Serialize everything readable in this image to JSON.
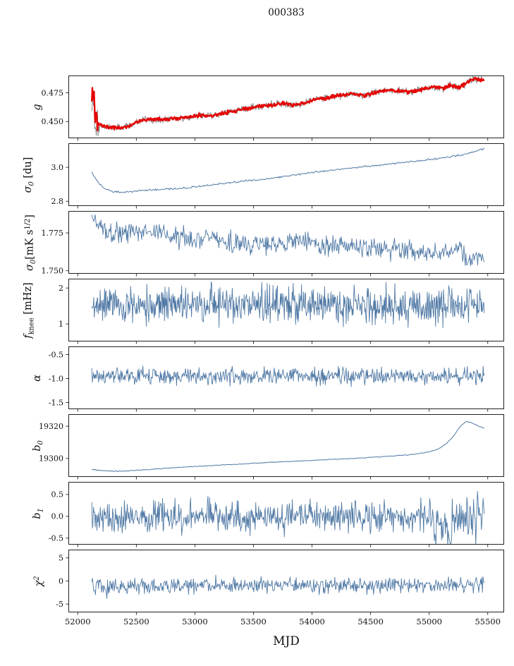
{
  "figure": {
    "title": "000383",
    "xlabel": "MJD"
  },
  "chart_data": {
    "type": "line",
    "description": "Stack of 8 time-series panels sharing MJD x-axis; noisy instrument gain/noise parameters vs time. Trends given as control points [MJD, value]; 'noise' is the 1-sigma scatter around the trend.",
    "x_axis": {
      "label": "MJD",
      "xlim": [
        51920,
        55640
      ],
      "data_range": [
        52120,
        55470
      ],
      "ticks": [
        52000,
        52500,
        53000,
        53500,
        54000,
        54500,
        55000,
        55500
      ],
      "tick_labels": [
        "52000",
        "52500",
        "53000",
        "53500",
        "54000",
        "54500",
        "55000",
        "55500"
      ]
    },
    "panels": [
      {
        "name": "g",
        "ylabel_parts": [
          {
            "v": "g",
            "i": 1
          }
        ],
        "ylim": [
          0.4355,
          0.49
        ],
        "yticks": [
          {
            "v": 0.475,
            "label": "0.475"
          },
          {
            "v": 0.45,
            "label": "0.450"
          }
        ],
        "npts": 700,
        "trend": [
          [
            52120,
            0.46
          ],
          [
            52135,
            0.468
          ],
          [
            52150,
            0.452
          ],
          [
            52200,
            0.4465
          ],
          [
            52300,
            0.4445
          ],
          [
            52420,
            0.4455
          ],
          [
            52500,
            0.4495
          ],
          [
            52560,
            0.4515
          ],
          [
            52700,
            0.452
          ],
          [
            52900,
            0.4535
          ],
          [
            53050,
            0.4555
          ],
          [
            53150,
            0.455
          ],
          [
            53250,
            0.4575
          ],
          [
            53400,
            0.4605
          ],
          [
            53500,
            0.4625
          ],
          [
            53600,
            0.4638
          ],
          [
            53750,
            0.4655
          ],
          [
            53850,
            0.4645
          ],
          [
            53950,
            0.4665
          ],
          [
            54050,
            0.4695
          ],
          [
            54150,
            0.471
          ],
          [
            54250,
            0.473
          ],
          [
            54350,
            0.4742
          ],
          [
            54450,
            0.4725
          ],
          [
            54550,
            0.4755
          ],
          [
            54650,
            0.4772
          ],
          [
            54750,
            0.4765
          ],
          [
            54850,
            0.4758
          ],
          [
            54950,
            0.4785
          ],
          [
            55050,
            0.48
          ],
          [
            55120,
            0.4788
          ],
          [
            55180,
            0.4815
          ],
          [
            55250,
            0.4795
          ],
          [
            55300,
            0.482
          ],
          [
            55350,
            0.486
          ],
          [
            55400,
            0.4872
          ],
          [
            55470,
            0.4852
          ]
        ],
        "series": [
          {
            "name": "raw-gain",
            "color": "#8a8a8a",
            "width": 1.0,
            "seed": 101,
            "noise_pts": [
              [
                52120,
                0.008
              ],
              [
                52160,
                0.008
              ],
              [
                52190,
                0.0016
              ],
              [
                55470,
                0.0016
              ]
            ]
          },
          {
            "name": "smoothed-gain",
            "color": "#e60000",
            "width": 2.3,
            "seed": 102,
            "noise_pts": [
              [
                52120,
                0.0075
              ],
              [
                52160,
                0.0075
              ],
              [
                52190,
                0.0008
              ],
              [
                55470,
                0.0008
              ]
            ]
          }
        ]
      },
      {
        "name": "sigma0-du",
        "ylabel_parts": [
          {
            "v": "σ",
            "i": 1
          },
          {
            "v": "0",
            "s": "sub",
            "i": 1
          },
          {
            "v": " [du]"
          }
        ],
        "ylim": [
          2.772,
          3.142
        ],
        "yticks": [
          {
            "v": 3.0,
            "label": "3.0"
          },
          {
            "v": 2.8,
            "label": "2.8"
          }
        ],
        "npts": 450,
        "noise": 0.0025,
        "trend": [
          [
            52120,
            2.97
          ],
          [
            52170,
            2.915
          ],
          [
            52230,
            2.872
          ],
          [
            52300,
            2.856
          ],
          [
            52400,
            2.853
          ],
          [
            52550,
            2.862
          ],
          [
            52700,
            2.87
          ],
          [
            52850,
            2.875
          ],
          [
            53000,
            2.884
          ],
          [
            53200,
            2.9
          ],
          [
            53400,
            2.918
          ],
          [
            53600,
            2.93
          ],
          [
            53800,
            2.95
          ],
          [
            54000,
            2.97
          ],
          [
            54200,
            2.985
          ],
          [
            54400,
            3.0
          ],
          [
            54600,
            3.015
          ],
          [
            54800,
            3.03
          ],
          [
            55000,
            3.045
          ],
          [
            55150,
            3.06
          ],
          [
            55300,
            3.075
          ],
          [
            55400,
            3.095
          ],
          [
            55470,
            3.11
          ]
        ],
        "series": [
          {
            "name": "sigma0-du-line",
            "color": "#5079a5",
            "width": 1.0,
            "seed": 303
          }
        ]
      },
      {
        "name": "sigma0-mK",
        "ylabel_parts": [
          {
            "v": "σ",
            "i": 1
          },
          {
            "v": "0",
            "s": "sub",
            "i": 1
          },
          {
            "v": "[mK s"
          },
          {
            "v": "1/2",
            "s": "sup"
          },
          {
            "v": "]"
          }
        ],
        "ylim": [
          1.748,
          1.7895
        ],
        "yticks": [
          {
            "v": 1.775,
            "label": "1.775"
          },
          {
            "v": 1.75,
            "label": "1.750"
          }
        ],
        "npts": 600,
        "trend": [
          [
            52120,
            1.788
          ],
          [
            52160,
            1.78
          ],
          [
            52250,
            1.7755
          ],
          [
            52400,
            1.7735
          ],
          [
            52600,
            1.7765
          ],
          [
            52800,
            1.7725
          ],
          [
            53000,
            1.7705
          ],
          [
            53100,
            1.773
          ],
          [
            53300,
            1.7685
          ],
          [
            53500,
            1.7665
          ],
          [
            53700,
            1.768
          ],
          [
            53900,
            1.769
          ],
          [
            54100,
            1.7665
          ],
          [
            54300,
            1.7655
          ],
          [
            54500,
            1.7665
          ],
          [
            54700,
            1.7645
          ],
          [
            54900,
            1.7635
          ],
          [
            55050,
            1.76
          ],
          [
            55150,
            1.7625
          ],
          [
            55250,
            1.764
          ],
          [
            55330,
            1.756
          ],
          [
            55400,
            1.758
          ],
          [
            55470,
            1.759
          ]
        ],
        "series": [
          {
            "name": "sigma0-mK-line",
            "color": "#5079a5",
            "width": 0.9,
            "seed": 404,
            "noise_pts": [
              [
                52120,
                0.005
              ],
              [
                52200,
                0.0032
              ],
              [
                55470,
                0.0032
              ]
            ]
          }
        ]
      },
      {
        "name": "fknee",
        "ylabel_parts": [
          {
            "v": "f",
            "i": 1
          },
          {
            "v": "knee",
            "s": "sub"
          },
          {
            "v": " [mHz]"
          }
        ],
        "ylim": [
          0.51,
          2.26
        ],
        "yticks": [
          {
            "v": 2,
            "label": "2"
          },
          {
            "v": 1,
            "label": "1"
          }
        ],
        "npts": 800,
        "noise": 0.25,
        "trend": [
          [
            52120,
            1.52
          ],
          [
            55470,
            1.5
          ]
        ],
        "series": [
          {
            "name": "fknee-line",
            "color": "#5079a5",
            "width": 0.9,
            "seed": 505
          }
        ]
      },
      {
        "name": "alpha",
        "ylabel_parts": [
          {
            "v": "α",
            "i": 1
          }
        ],
        "ylim": [
          -1.64,
          -0.33
        ],
        "yticks": [
          {
            "v": -0.5,
            "label": "-0.5"
          },
          {
            "v": -1.0,
            "label": "-1.0"
          },
          {
            "v": -1.5,
            "label": "-1.5"
          }
        ],
        "npts": 700,
        "noise": 0.085,
        "trend": [
          [
            52120,
            -0.95
          ],
          [
            55470,
            -0.94
          ]
        ],
        "series": [
          {
            "name": "alpha-line",
            "color": "#5079a5",
            "width": 0.9,
            "seed": 606
          }
        ]
      },
      {
        "name": "b0",
        "ylabel_parts": [
          {
            "v": "b",
            "i": 1
          },
          {
            "v": "0",
            "s": "sub",
            "i": 1
          }
        ],
        "ylim": [
          19288.5,
          19327.5
        ],
        "yticks": [
          {
            "v": 19320,
            "label": "19320"
          },
          {
            "v": 19300,
            "label": "19300"
          }
        ],
        "npts": 450,
        "noise": 0.12,
        "trend": [
          [
            52120,
            19293.2
          ],
          [
            52200,
            19292.4
          ],
          [
            52350,
            19292.0
          ],
          [
            52500,
            19292.6
          ],
          [
            52700,
            19293.6
          ],
          [
            52900,
            19294.6
          ],
          [
            53100,
            19295.4
          ],
          [
            53300,
            19296.2
          ],
          [
            53500,
            19297.0
          ],
          [
            53700,
            19297.8
          ],
          [
            53900,
            19298.4
          ],
          [
            54100,
            19299.2
          ],
          [
            54300,
            19299.8
          ],
          [
            54500,
            19300.6
          ],
          [
            54700,
            19301.6
          ],
          [
            54850,
            19302.4
          ],
          [
            55000,
            19304.0
          ],
          [
            55080,
            19306.0
          ],
          [
            55150,
            19309.5
          ],
          [
            55200,
            19313.0
          ],
          [
            55260,
            19319.5
          ],
          [
            55310,
            19322.8
          ],
          [
            55360,
            19322.3
          ],
          [
            55420,
            19320.0
          ],
          [
            55470,
            19319.0
          ]
        ],
        "series": [
          {
            "name": "b0-line",
            "color": "#5079a5",
            "width": 1.0,
            "seed": 707
          }
        ]
      },
      {
        "name": "b1",
        "ylabel_parts": [
          {
            "v": "b",
            "i": 1
          },
          {
            "v": "1",
            "s": "sub",
            "i": 1
          }
        ],
        "ylim": [
          -0.65,
          0.79
        ],
        "yticks": [
          {
            "v": 0.5,
            "label": "0.5"
          },
          {
            "v": 0.0,
            "label": "0.0"
          },
          {
            "v": -0.5,
            "label": "-0.5"
          }
        ],
        "npts": 700,
        "trend": [
          [
            52120,
            0.0
          ],
          [
            54900,
            0.0
          ],
          [
            55020,
            -0.1
          ],
          [
            55100,
            -0.28
          ],
          [
            55170,
            -0.18
          ],
          [
            55250,
            -0.02
          ],
          [
            55350,
            0.02
          ],
          [
            55470,
            0.05
          ]
        ],
        "series": [
          {
            "name": "b1-line",
            "color": "#5079a5",
            "width": 0.9,
            "seed": 808,
            "noise_pts": [
              [
                52120,
                0.17
              ],
              [
                54900,
                0.17
              ],
              [
                55050,
                0.22
              ],
              [
                55150,
                0.24
              ],
              [
                55250,
                0.18
              ],
              [
                55320,
                0.28
              ],
              [
                55470,
                0.3
              ]
            ]
          }
        ]
      },
      {
        "name": "chi2",
        "ylabel_parts": [
          {
            "v": "χ",
            "i": 1
          },
          {
            "v": "2",
            "s": "sup",
            "i": 1
          }
        ],
        "ylim": [
          -6.8,
          6.8
        ],
        "yticks": [
          {
            "v": 5,
            "label": "5"
          },
          {
            "v": 0,
            "label": "0"
          },
          {
            "v": -5,
            "label": "-5"
          }
        ],
        "npts": 650,
        "noise": 0.85,
        "trend": [
          [
            52120,
            -0.9
          ],
          [
            52260,
            -1.6
          ],
          [
            52420,
            -1.1
          ],
          [
            52700,
            -1.15
          ],
          [
            53000,
            -1.0
          ],
          [
            53500,
            -1.0
          ],
          [
            54000,
            -0.95
          ],
          [
            54500,
            -0.9
          ],
          [
            55000,
            -0.85
          ],
          [
            55470,
            -0.8
          ]
        ],
        "series": [
          {
            "name": "chi2-line",
            "color": "#5079a5",
            "width": 0.9,
            "seed": 909
          }
        ]
      }
    ]
  }
}
